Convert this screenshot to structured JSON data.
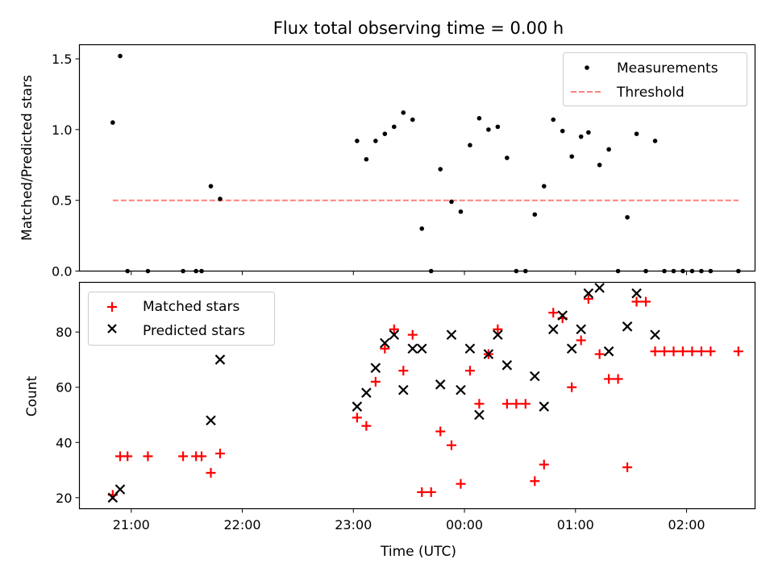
{
  "chart_data": [
    {
      "type": "scatter",
      "title": "Flux total observing time = 0.00 h",
      "xlabel": "",
      "ylabel": "Matched/Predicted stars",
      "xlim": [
        "20:32",
        "02:37"
      ],
      "ylim": [
        0,
        1.6
      ],
      "yticks": [
        0.0,
        0.5,
        1.0,
        1.5
      ],
      "ytick_labels": [
        "0.0",
        "0.5",
        "1.0",
        "1.5"
      ],
      "xticks": [
        "21:00",
        "22:00",
        "23:00",
        "00:00",
        "01:00",
        "02:00"
      ],
      "xtick_labels_shown": false,
      "legend_position": "top-right",
      "legend": [
        {
          "label": "Measurements",
          "marker": "dot",
          "color": "#000000"
        },
        {
          "label": "Threshold",
          "marker": "dashed-line",
          "color": "#ff7f7f"
        }
      ],
      "series": [
        {
          "name": "Measurements",
          "color": "#000000",
          "points": [
            {
              "x": "20:50",
              "y": 1.05
            },
            {
              "x": "20:54",
              "y": 1.52
            },
            {
              "x": "20:58",
              "y": 0.0
            },
            {
              "x": "21:09",
              "y": 0.0
            },
            {
              "x": "21:28",
              "y": 0.0
            },
            {
              "x": "21:35",
              "y": 0.0
            },
            {
              "x": "21:38",
              "y": 0.0
            },
            {
              "x": "21:43",
              "y": 0.6
            },
            {
              "x": "21:48",
              "y": 0.51
            },
            {
              "x": "23:02",
              "y": 0.92
            },
            {
              "x": "23:07",
              "y": 0.79
            },
            {
              "x": "23:12",
              "y": 0.92
            },
            {
              "x": "23:17",
              "y": 0.97
            },
            {
              "x": "23:22",
              "y": 1.02
            },
            {
              "x": "23:27",
              "y": 1.12
            },
            {
              "x": "23:32",
              "y": 1.07
            },
            {
              "x": "23:37",
              "y": 0.3
            },
            {
              "x": "23:42",
              "y": 0.0
            },
            {
              "x": "23:47",
              "y": 0.72
            },
            {
              "x": "23:53",
              "y": 0.49
            },
            {
              "x": "23:58",
              "y": 0.42
            },
            {
              "x": "00:03",
              "y": 0.89
            },
            {
              "x": "00:08",
              "y": 1.08
            },
            {
              "x": "00:13",
              "y": 1.0
            },
            {
              "x": "00:18",
              "y": 1.02
            },
            {
              "x": "00:23",
              "y": 0.8
            },
            {
              "x": "00:28",
              "y": 0.0
            },
            {
              "x": "00:33",
              "y": 0.0
            },
            {
              "x": "00:38",
              "y": 0.4
            },
            {
              "x": "00:43",
              "y": 0.6
            },
            {
              "x": "00:48",
              "y": 1.07
            },
            {
              "x": "00:53",
              "y": 0.99
            },
            {
              "x": "00:58",
              "y": 0.81
            },
            {
              "x": "01:03",
              "y": 0.95
            },
            {
              "x": "01:07",
              "y": 0.98
            },
            {
              "x": "01:13",
              "y": 0.75
            },
            {
              "x": "01:18",
              "y": 0.86
            },
            {
              "x": "01:23",
              "y": 0.0
            },
            {
              "x": "01:28",
              "y": 0.38
            },
            {
              "x": "01:33",
              "y": 0.97
            },
            {
              "x": "01:38",
              "y": 0.0
            },
            {
              "x": "01:43",
              "y": 0.92
            },
            {
              "x": "01:48",
              "y": 0.0
            },
            {
              "x": "01:53",
              "y": 0.0
            },
            {
              "x": "01:58",
              "y": 0.0
            },
            {
              "x": "02:03",
              "y": 0.0
            },
            {
              "x": "02:08",
              "y": 0.0
            },
            {
              "x": "02:13",
              "y": 0.0
            },
            {
              "x": "02:28",
              "y": 0.0
            }
          ]
        },
        {
          "name": "Threshold",
          "color": "#ff7f7f",
          "style": "dashed",
          "line": {
            "x_start": "20:50",
            "x_end": "02:28",
            "y": 0.5
          }
        }
      ]
    },
    {
      "type": "scatter",
      "title": "",
      "xlabel": "Time (UTC)",
      "ylabel": "Count",
      "xlim": [
        "20:32",
        "02:37"
      ],
      "ylim": [
        16,
        98
      ],
      "yticks": [
        20,
        40,
        60,
        80
      ],
      "ytick_labels": [
        "20",
        "40",
        "60",
        "80"
      ],
      "xticks": [
        "21:00",
        "22:00",
        "23:00",
        "00:00",
        "01:00",
        "02:00"
      ],
      "xtick_labels": [
        "21:00",
        "22:00",
        "23:00",
        "00:00",
        "01:00",
        "02:00"
      ],
      "legend_position": "top-left",
      "legend": [
        {
          "label": "Matched stars",
          "marker": "plus",
          "color": "#ff0000"
        },
        {
          "label": "Predicted stars",
          "marker": "x",
          "color": "#000000"
        }
      ],
      "series": [
        {
          "name": "Matched stars",
          "marker": "plus",
          "color": "#ff0000",
          "points": [
            {
              "x": "20:50",
              "y": 21
            },
            {
              "x": "20:54",
              "y": 35
            },
            {
              "x": "20:58",
              "y": 35
            },
            {
              "x": "21:09",
              "y": 35
            },
            {
              "x": "21:28",
              "y": 35
            },
            {
              "x": "21:35",
              "y": 35
            },
            {
              "x": "21:38",
              "y": 35
            },
            {
              "x": "21:43",
              "y": 29
            },
            {
              "x": "21:48",
              "y": 36
            },
            {
              "x": "23:02",
              "y": 49
            },
            {
              "x": "23:07",
              "y": 46
            },
            {
              "x": "23:12",
              "y": 62
            },
            {
              "x": "23:17",
              "y": 74
            },
            {
              "x": "23:22",
              "y": 81
            },
            {
              "x": "23:27",
              "y": 66
            },
            {
              "x": "23:32",
              "y": 79
            },
            {
              "x": "23:37",
              "y": 22
            },
            {
              "x": "23:42",
              "y": 22
            },
            {
              "x": "23:47",
              "y": 44
            },
            {
              "x": "23:53",
              "y": 39
            },
            {
              "x": "23:58",
              "y": 25
            },
            {
              "x": "00:03",
              "y": 66
            },
            {
              "x": "00:08",
              "y": 54
            },
            {
              "x": "00:13",
              "y": 72
            },
            {
              "x": "00:18",
              "y": 81
            },
            {
              "x": "00:23",
              "y": 54
            },
            {
              "x": "00:28",
              "y": 54
            },
            {
              "x": "00:33",
              "y": 54
            },
            {
              "x": "00:38",
              "y": 26
            },
            {
              "x": "00:43",
              "y": 32
            },
            {
              "x": "00:48",
              "y": 87
            },
            {
              "x": "00:53",
              "y": 85
            },
            {
              "x": "00:58",
              "y": 60
            },
            {
              "x": "01:03",
              "y": 77
            },
            {
              "x": "01:07",
              "y": 92
            },
            {
              "x": "01:13",
              "y": 72
            },
            {
              "x": "01:18",
              "y": 63
            },
            {
              "x": "01:23",
              "y": 63
            },
            {
              "x": "01:28",
              "y": 31
            },
            {
              "x": "01:33",
              "y": 91
            },
            {
              "x": "01:38",
              "y": 91
            },
            {
              "x": "01:43",
              "y": 73
            },
            {
              "x": "01:48",
              "y": 73
            },
            {
              "x": "01:53",
              "y": 73
            },
            {
              "x": "01:58",
              "y": 73
            },
            {
              "x": "02:03",
              "y": 73
            },
            {
              "x": "02:08",
              "y": 73
            },
            {
              "x": "02:13",
              "y": 73
            },
            {
              "x": "02:28",
              "y": 73
            }
          ]
        },
        {
          "name": "Predicted stars",
          "marker": "x",
          "color": "#000000",
          "points": [
            {
              "x": "20:50",
              "y": 20
            },
            {
              "x": "20:54",
              "y": 23
            },
            {
              "x": "21:43",
              "y": 48
            },
            {
              "x": "21:48",
              "y": 70
            },
            {
              "x": "23:02",
              "y": 53
            },
            {
              "x": "23:07",
              "y": 58
            },
            {
              "x": "23:12",
              "y": 67
            },
            {
              "x": "23:17",
              "y": 76
            },
            {
              "x": "23:22",
              "y": 79
            },
            {
              "x": "23:27",
              "y": 59
            },
            {
              "x": "23:32",
              "y": 74
            },
            {
              "x": "23:37",
              "y": 74
            },
            {
              "x": "23:47",
              "y": 61
            },
            {
              "x": "23:53",
              "y": 79
            },
            {
              "x": "23:58",
              "y": 59
            },
            {
              "x": "00:03",
              "y": 74
            },
            {
              "x": "00:08",
              "y": 50
            },
            {
              "x": "00:13",
              "y": 72
            },
            {
              "x": "00:18",
              "y": 79
            },
            {
              "x": "00:23",
              "y": 68
            },
            {
              "x": "00:38",
              "y": 64
            },
            {
              "x": "00:43",
              "y": 53
            },
            {
              "x": "00:48",
              "y": 81
            },
            {
              "x": "00:53",
              "y": 86
            },
            {
              "x": "00:58",
              "y": 74
            },
            {
              "x": "01:03",
              "y": 81
            },
            {
              "x": "01:07",
              "y": 94
            },
            {
              "x": "01:13",
              "y": 96
            },
            {
              "x": "01:18",
              "y": 73
            },
            {
              "x": "01:28",
              "y": 82
            },
            {
              "x": "01:33",
              "y": 94
            },
            {
              "x": "01:43",
              "y": 79
            }
          ]
        }
      ]
    }
  ]
}
